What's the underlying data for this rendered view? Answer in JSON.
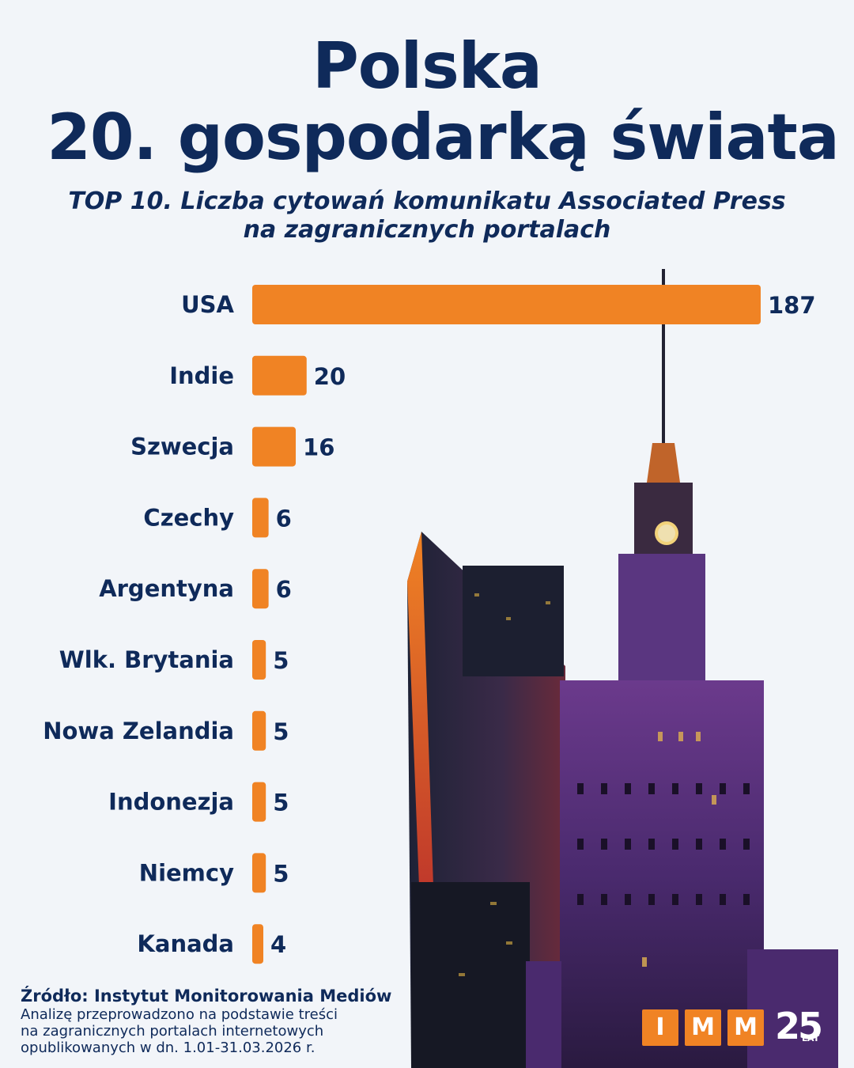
{
  "header": {
    "title_line1": "Polska",
    "title_line2": "20. gospodarką świata",
    "subtitle_line1": "TOP 10. Liczba cytowań komunikatu Associated Press",
    "subtitle_line2": "na zagranicznych portalach"
  },
  "chart_data": {
    "type": "bar",
    "orientation": "horizontal",
    "title": "TOP 10. Liczba cytowań komunikatu Associated Press na zagranicznych portalach",
    "categories": [
      "USA",
      "Indie",
      "Szwecja",
      "Czechy",
      "Argentyna",
      "Wlk. Brytania",
      "Nowa Zelandia",
      "Indonezja",
      "Niemcy",
      "Kanada"
    ],
    "values": [
      187,
      20,
      16,
      6,
      6,
      5,
      5,
      5,
      5,
      4
    ],
    "bar_color": "#f08324",
    "grid": false,
    "legend": "none"
  },
  "footer": {
    "source_title": "Źródło: Instytut Monitorowania Mediów",
    "note_line1": "Analizę przeprowadzono na podstawie treści",
    "note_line2": "na zagranicznych portalach internetowych",
    "note_line3": "opublikowanych w dn. 1.01-31.03.2026 r."
  },
  "logo": {
    "letters": [
      "I",
      "M",
      "M"
    ],
    "years": "25",
    "years_caption": "LAT",
    "color": "#f08324"
  },
  "colors": {
    "navy": "#0f2a5a",
    "accent": "#f08324",
    "background": "#f2f5f9"
  }
}
